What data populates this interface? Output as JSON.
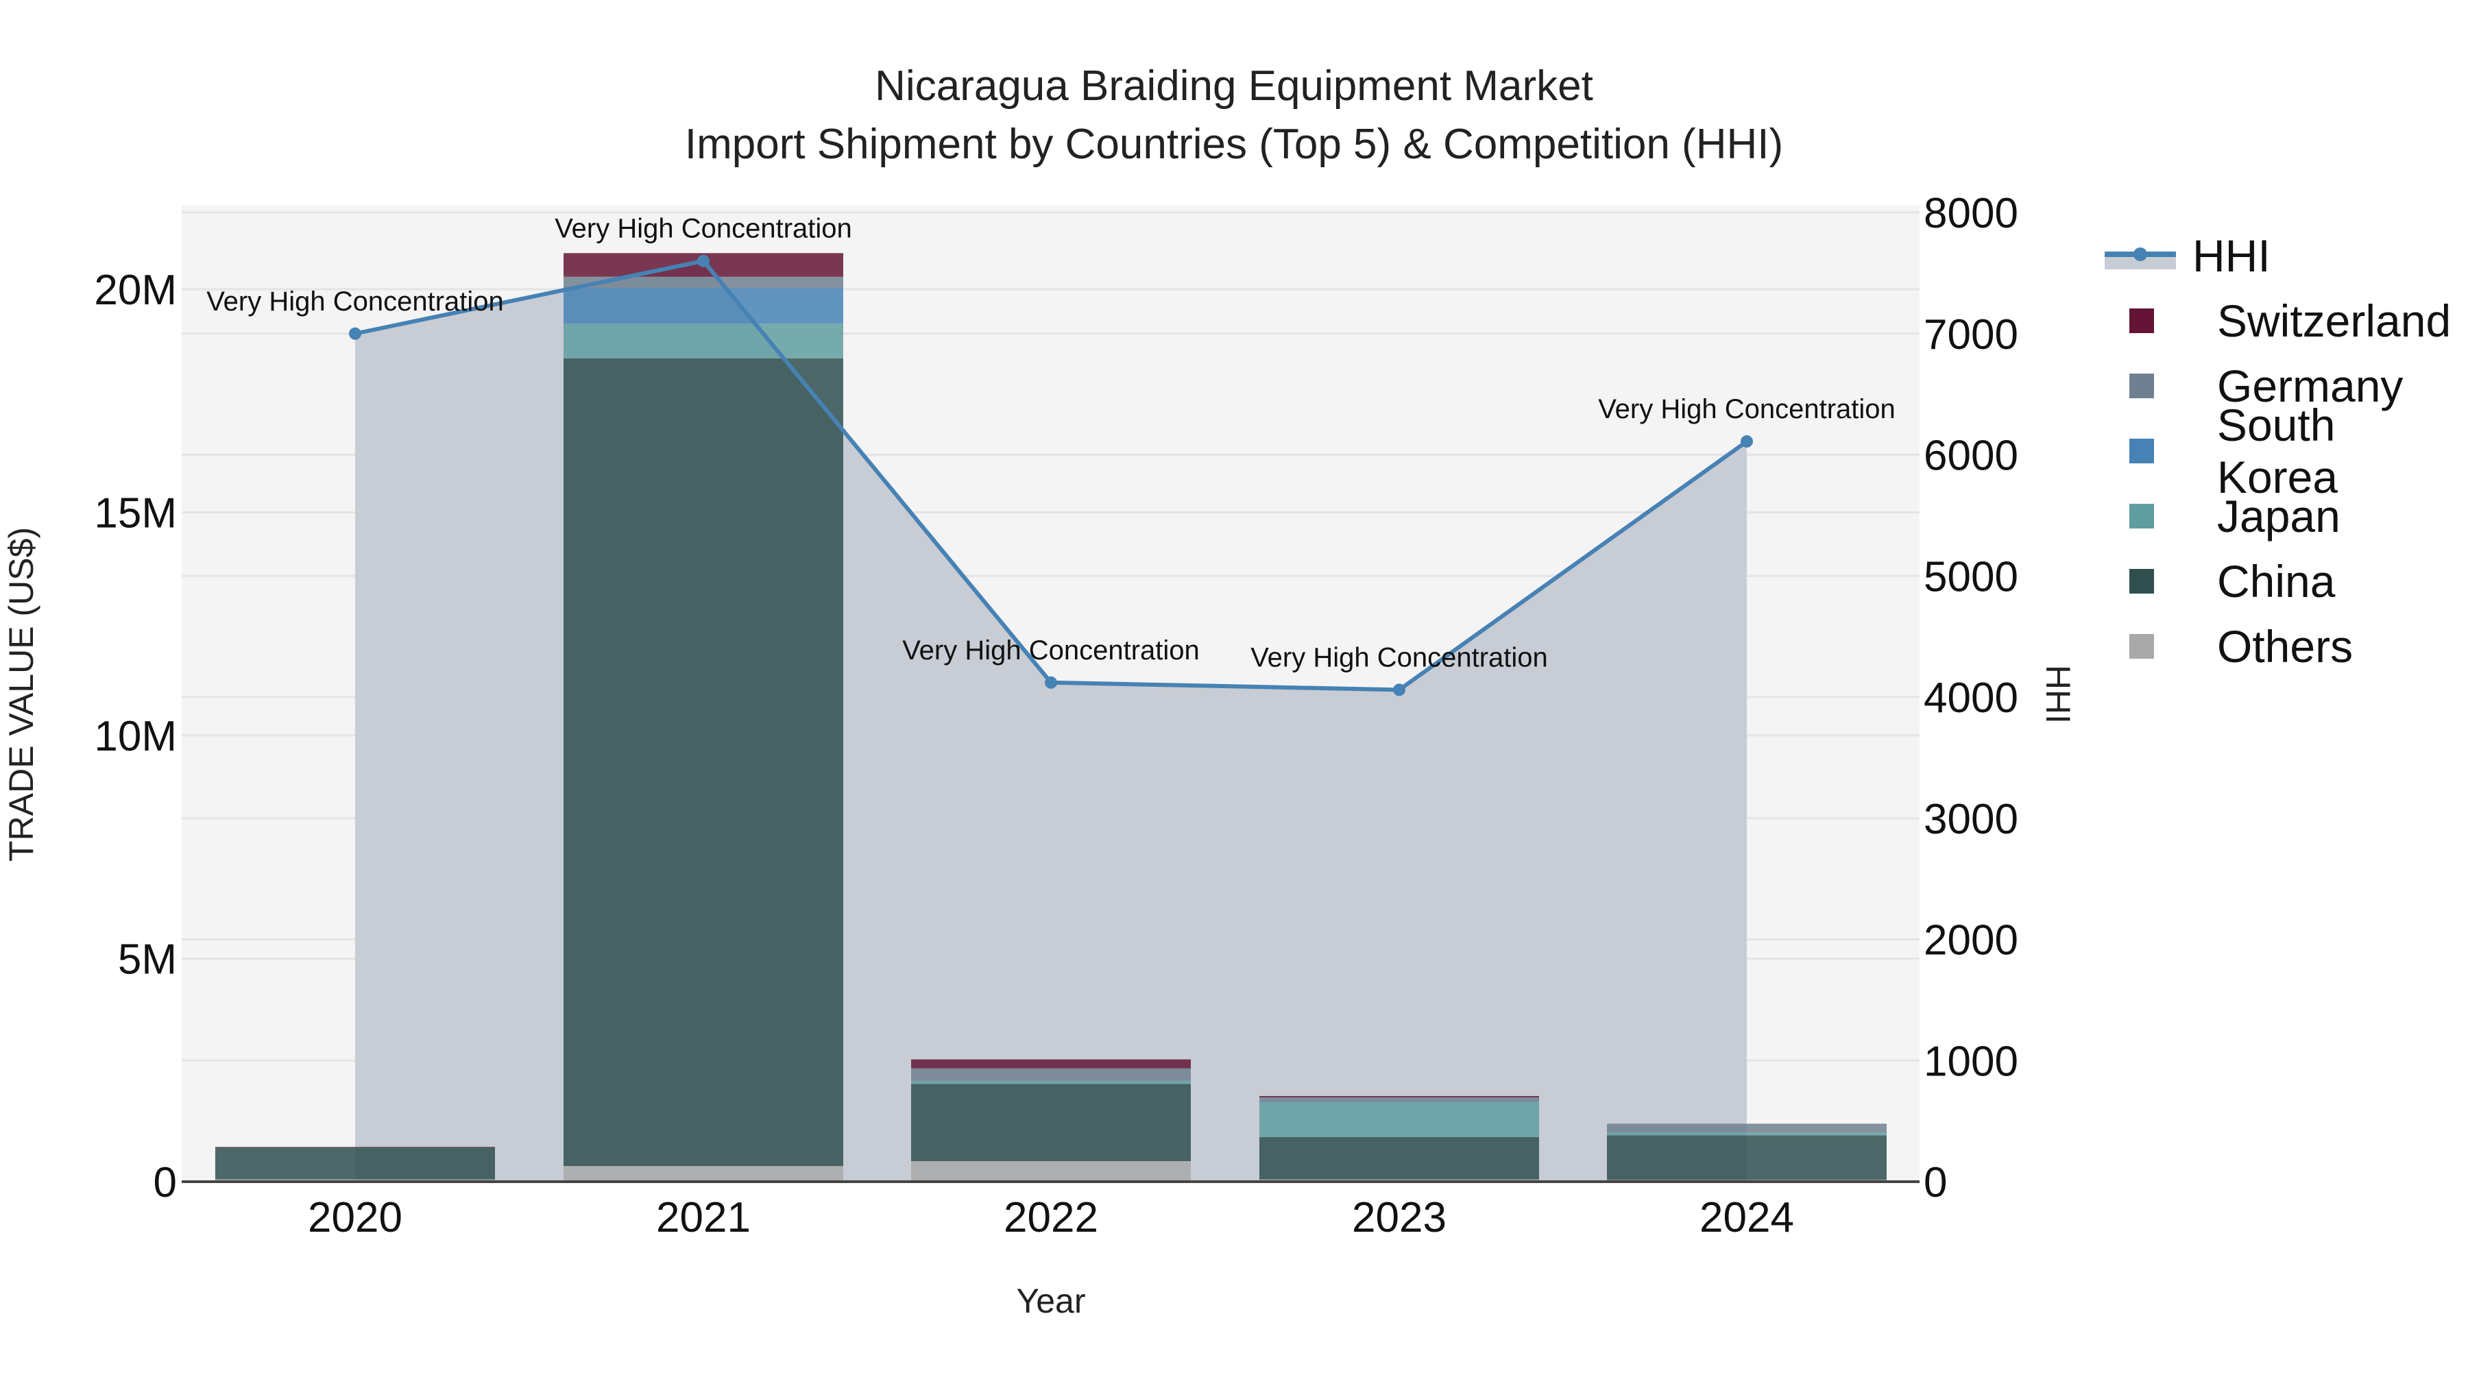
{
  "title": {
    "line1": "Nicaragua Braiding Equipment Market",
    "line2": "Import Shipment by Countries (Top 5) & Competition (HHI)"
  },
  "axes": {
    "xlabel": "Year",
    "ylabel_left": "TRADE VALUE (US$)",
    "ylabel_right": "HHI",
    "left_ticks": [
      "0",
      "5M",
      "10M",
      "15M",
      "20M"
    ],
    "right_ticks": [
      "0",
      "1000",
      "2000",
      "3000",
      "4000",
      "5000",
      "6000",
      "7000",
      "8000"
    ]
  },
  "legend": [
    {
      "name": "HHI",
      "color": "#4682B4"
    },
    {
      "name": "Switzerland",
      "color": "#641535"
    },
    {
      "name": "Germany",
      "color": "#708090"
    },
    {
      "name": "South Korea",
      "color": "#4682B4"
    },
    {
      "name": "Japan",
      "color": "#5F9EA0"
    },
    {
      "name": "China",
      "color": "#2F4F4F"
    },
    {
      "name": "Others",
      "color": "#A9A9A9"
    }
  ],
  "chart_data": {
    "type": "bar",
    "title": "Nicaragua Braiding Equipment Market - Import Shipment by Countries (Top 5) & Competition (HHI)",
    "xlabel": "Year",
    "ylabel": "TRADE VALUE (US$)",
    "y2label": "HHI",
    "ylim": [
      0,
      22000000
    ],
    "y2lim": [
      0,
      8000
    ],
    "categories": [
      "2020",
      "2021",
      "2022",
      "2023",
      "2024"
    ],
    "series": [
      {
        "name": "Others",
        "values": [
          50000,
          350000,
          460000,
          50000,
          40000
        ]
      },
      {
        "name": "China",
        "values": [
          720000,
          18100000,
          1730000,
          950000,
          1000000
        ]
      },
      {
        "name": "Japan",
        "values": [
          0,
          780000,
          70000,
          780000,
          60000
        ]
      },
      {
        "name": "South Korea",
        "values": [
          0,
          800000,
          0,
          10000,
          0
        ]
      },
      {
        "name": "Germany",
        "values": [
          0,
          250000,
          280000,
          100000,
          200000
        ]
      },
      {
        "name": "Switzerland",
        "values": [
          10000,
          530000,
          200000,
          30000,
          0
        ]
      },
      {
        "name": "HHI",
        "type": "line+area",
        "axis": "right",
        "values": [
          7000,
          7600,
          4120,
          4060,
          6110
        ]
      }
    ],
    "annotations": [
      "Very High Concentration",
      "Very High Concentration",
      "Very High Concentration",
      "Very High Concentration",
      "Very High Concentration"
    ],
    "grid": true,
    "legend_position": "right"
  }
}
